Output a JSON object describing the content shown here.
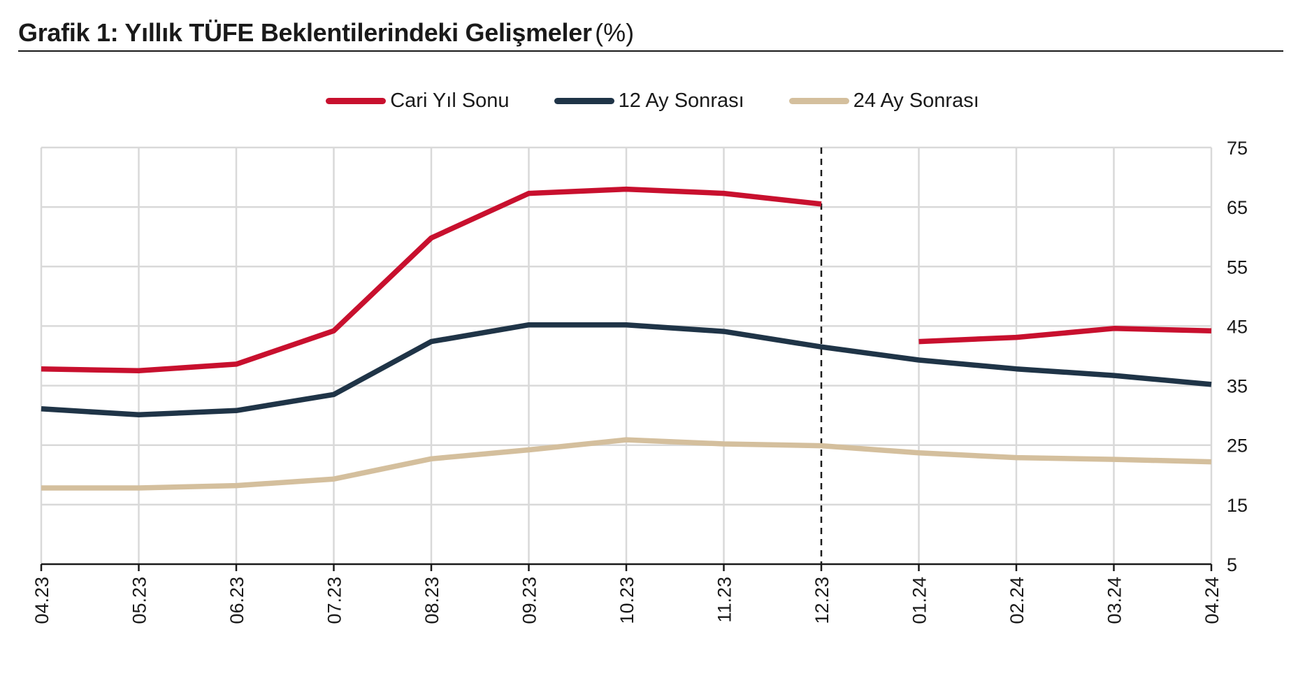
{
  "title": "Grafik 1: Yıllık TÜFE Beklentilerindeki Gelişmeler",
  "title_unit": "(%)",
  "chart_data": {
    "type": "line",
    "x": [
      "04.23",
      "05.23",
      "06.23",
      "07.23",
      "08.23",
      "09.23",
      "10.23",
      "11.23",
      "12.23",
      "01.24",
      "02.24",
      "03.24",
      "04.24"
    ],
    "ylim": [
      5,
      75
    ],
    "yticks": [
      5,
      15,
      25,
      35,
      45,
      55,
      65,
      75
    ],
    "y_axis_side": "right",
    "grid": true,
    "legend_position": "top",
    "vertical_marker": "12.23",
    "series": [
      {
        "name": "Cari Yıl Sonu",
        "color": "#C8102E",
        "values": [
          37.8,
          37.5,
          38.6,
          44.2,
          59.8,
          67.3,
          68.0,
          67.3,
          65.5,
          42.4,
          43.1,
          44.6,
          44.2
        ]
      },
      {
        "name": "12 Ay Sonrası",
        "color": "#1F3447",
        "values": [
          31.1,
          30.1,
          30.8,
          33.5,
          42.4,
          45.2,
          45.2,
          44.1,
          41.5,
          39.3,
          37.8,
          36.7,
          35.2
        ]
      },
      {
        "name": "24 Ay Sonrası",
        "color": "#D4BF9D",
        "values": [
          17.8,
          17.8,
          18.2,
          19.3,
          22.7,
          24.2,
          25.9,
          25.2,
          24.9,
          23.7,
          22.9,
          22.6,
          22.2
        ]
      }
    ]
  }
}
